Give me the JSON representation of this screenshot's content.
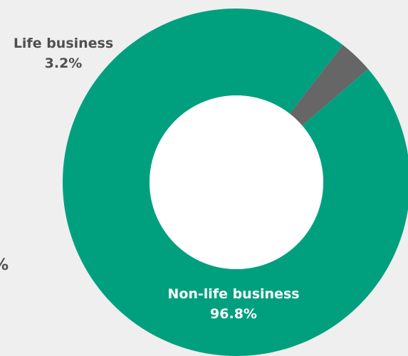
{
  "chart_data": {
    "type": "pie",
    "variant": "donut",
    "series": [
      {
        "slices": [
          {
            "name": "Life business",
            "value": 3.2,
            "display": "3.2%",
            "color": "#666666"
          },
          {
            "name": "Non-life business",
            "value": 96.8,
            "display": "96.8%",
            "color": "#00a07f"
          }
        ]
      }
    ],
    "hole_color": "#ffffff",
    "edge_text": "%"
  }
}
